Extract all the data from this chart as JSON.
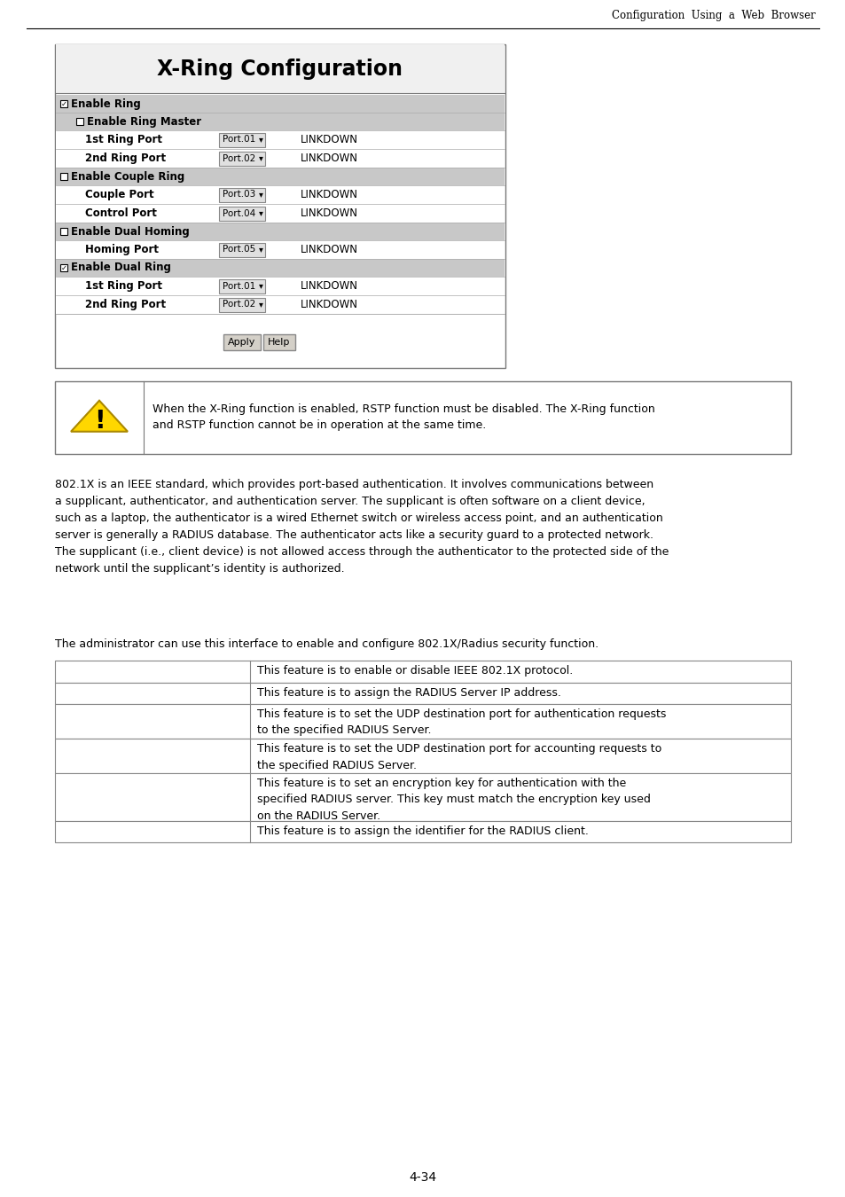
{
  "header_text": "Configuration  Using  a  Web  Browser",
  "page_number": "4-34",
  "xring_title": "X-Ring Configuration",
  "xring_rows": [
    {
      "type": "section_checked",
      "label": "Enable Ring",
      "checked": true,
      "indent": 0
    },
    {
      "type": "section_unchecked",
      "label": "Enable Ring Master",
      "checked": false,
      "indent": 1
    },
    {
      "type": "port_row",
      "label": "1st Ring Port",
      "port": "Port.01",
      "status": "LINKDOWN",
      "indent": 2
    },
    {
      "type": "port_row",
      "label": "2nd Ring Port",
      "port": "Port.02",
      "status": "LINKDOWN",
      "indent": 2
    },
    {
      "type": "section_unchecked",
      "label": "Enable Couple Ring",
      "checked": false,
      "indent": 0
    },
    {
      "type": "port_row",
      "label": "Couple Port",
      "port": "Port.03",
      "status": "LINKDOWN",
      "indent": 2
    },
    {
      "type": "port_row",
      "label": "Control Port",
      "port": "Port.04",
      "status": "LINKDOWN",
      "indent": 2
    },
    {
      "type": "section_unchecked",
      "label": "Enable Dual Homing",
      "checked": false,
      "indent": 0
    },
    {
      "type": "port_row",
      "label": "Homing Port",
      "port": "Port.05",
      "status": "LINKDOWN",
      "indent": 2
    },
    {
      "type": "section_checked",
      "label": "Enable Dual Ring",
      "checked": true,
      "indent": 0
    },
    {
      "type": "port_row",
      "label": "1st Ring Port",
      "port": "Port.01",
      "status": "LINKDOWN",
      "indent": 2
    },
    {
      "type": "port_row",
      "label": "2nd Ring Port",
      "port": "Port.02",
      "status": "LINKDOWN",
      "indent": 2
    }
  ],
  "warning_text": "When the X-Ring function is enabled, RSTP function must be disabled. The X-Ring function\nand RSTP function cannot be in operation at the same time.",
  "body_text": "802.1X is an IEEE standard, which provides port-based authentication. It involves communications between\na supplicant, authenticator, and authentication server. The supplicant is often software on a client device,\nsuch as a laptop, the authenticator is a wired Ethernet switch or wireless access point, and an authentication\nserver is generally a RADIUS database. The authenticator acts like a security guard to a protected network.\nThe supplicant (i.e., client device) is not allowed access through the authenticator to the protected side of the\nnetwork until the supplicant’s identity is authorized.",
  "admin_text": "The administrator can use this interface to enable and configure 802.1X/Radius security function.",
  "table_rows": [
    {
      "text": "This feature is to enable or disable IEEE 802.1X protocol.",
      "lines": 1
    },
    {
      "text": "This feature is to assign the RADIUS Server IP address.",
      "lines": 1
    },
    {
      "text": "This feature is to set the UDP destination port for authentication requests\nto the specified RADIUS Server.",
      "lines": 2
    },
    {
      "text": "This feature is to set the UDP destination port for accounting requests to\nthe specified RADIUS Server.",
      "lines": 2
    },
    {
      "text": "This feature is to set an encryption key for authentication with the\nspecified RADIUS server. This key must match the encryption key used\non the RADIUS Server.",
      "lines": 3
    },
    {
      "text": "This feature is to assign the identifier for the RADIUS client.",
      "lines": 1
    }
  ],
  "bg_color": "#ffffff",
  "section_bg": "#c8c8c8",
  "port_row_bg": "#ffffff",
  "border_color": "#aaaaaa",
  "box_border_color": "#888888"
}
